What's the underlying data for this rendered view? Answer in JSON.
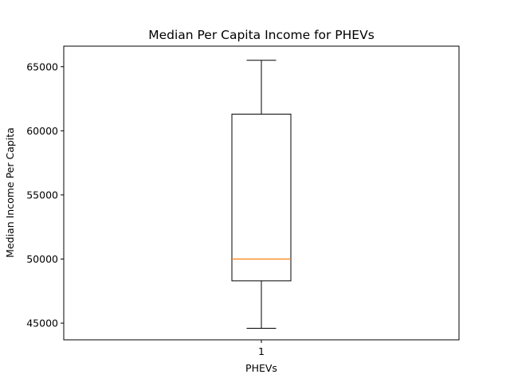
{
  "chart_data": {
    "type": "box",
    "title": "Median Per Capita Income for PHEVs",
    "xlabel": "PHEVs",
    "ylabel": "Median Income Per Capita",
    "categories": [
      "1"
    ],
    "ylim": [
      43700,
      66600
    ],
    "yticks": [
      45000,
      50000,
      55000,
      60000,
      65000
    ],
    "grid": false,
    "boxes": [
      {
        "label": "1",
        "min": 44600,
        "q1": 48300,
        "median": 50000,
        "q3": 61300,
        "max": 65500
      }
    ],
    "colors": {
      "box": "#000000",
      "median": "#ff7f0e",
      "background": "#ffffff"
    }
  }
}
